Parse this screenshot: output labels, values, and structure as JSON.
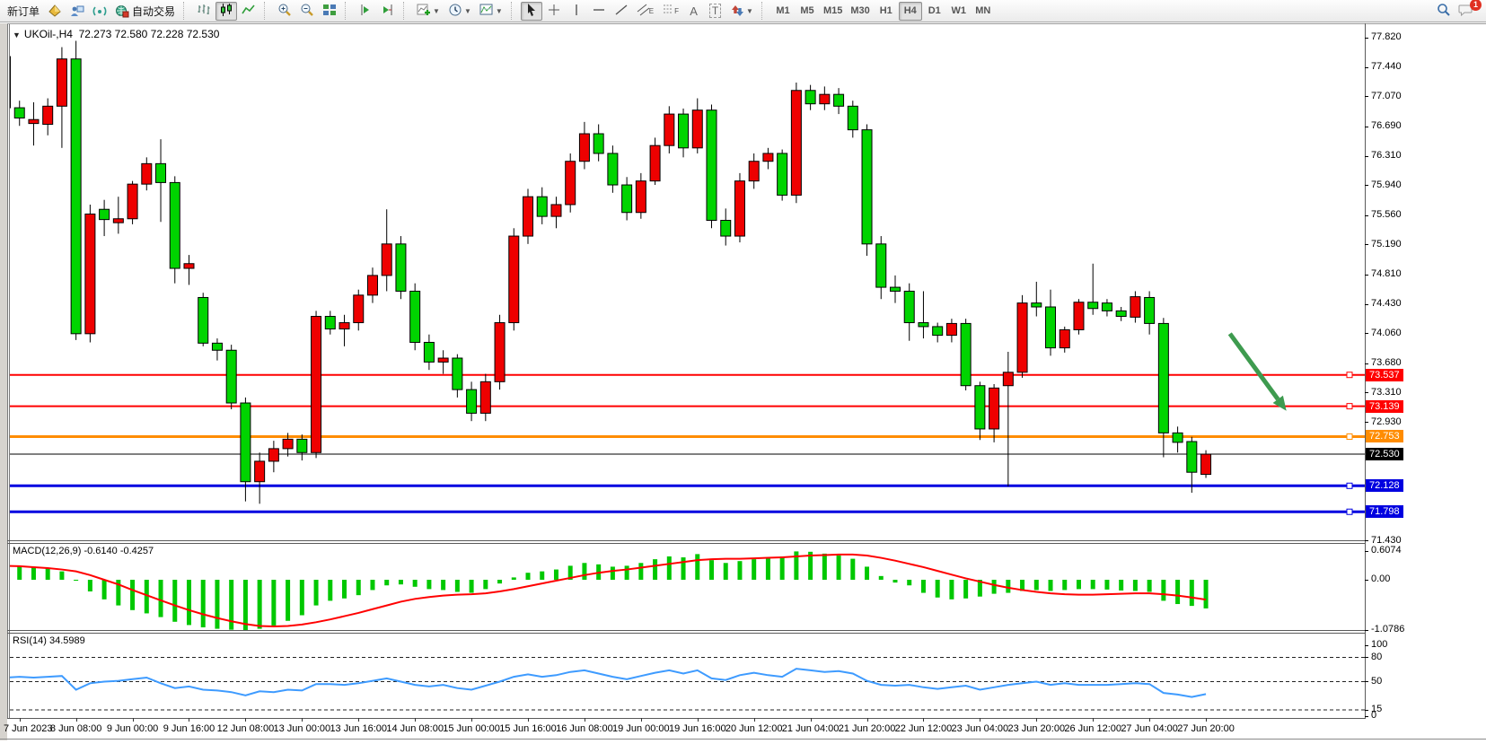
{
  "toolbar": {
    "new_order_label": "新订单",
    "auto_trade_label": "自动交易",
    "timeframes": [
      "M1",
      "M5",
      "M15",
      "M30",
      "H1",
      "H4",
      "D1",
      "W1",
      "MN"
    ],
    "active_timeframe": "H4",
    "notification_badge": "1",
    "text_tool_label": "A",
    "label_tool_label": "T",
    "channel_tool_label": "E",
    "fibo_tool_label": "F"
  },
  "chart": {
    "title_symbol_period": "UKOil-,H4",
    "title_ohlc": "72.273 72.580 72.228 72.530",
    "macd_label": "MACD(12,26,9) -0.6140 -0.4257",
    "rsi_label": "RSI(14) 34.5989"
  },
  "colors": {
    "bull_candle": "#EE0000",
    "bear_candle": "#00D400",
    "candle_outline": "#000000",
    "macd_histogram": "#00C800",
    "macd_signal": "#FF0000",
    "rsi_line": "#3E9BFF",
    "level_red": "#FF0000",
    "level_orange": "#FF8C00",
    "level_blue": "#0000E0",
    "current_price_line": "#000000",
    "arrow": "#3E9B4F"
  },
  "price_lines": [
    {
      "price": 73.537,
      "label": "73.537",
      "color": "#FF0000",
      "width": 2,
      "handle": true
    },
    {
      "price": 73.139,
      "label": "73.139",
      "color": "#FF0000",
      "width": 2,
      "handle": true
    },
    {
      "price": 72.753,
      "label": "72.753",
      "color": "#FF8C00",
      "width": 3,
      "handle": true
    },
    {
      "price": 72.53,
      "label": "72.530",
      "color": "#000000",
      "width": 1,
      "handle": false
    },
    {
      "price": 72.128,
      "label": "72.128",
      "color": "#0000E0",
      "width": 3,
      "handle": true
    },
    {
      "price": 71.798,
      "label": "71.798",
      "color": "#0000E0",
      "width": 3,
      "handle": true
    }
  ],
  "annotation_arrow": {
    "from_bar": 86.7,
    "from_price": 74.06,
    "to_bar": 90.7,
    "to_price": 73.08,
    "color": "#3E9B4F"
  },
  "axis": {
    "price_ticks": [
      "77.820",
      "77.440",
      "77.070",
      "76.690",
      "76.310",
      "75.940",
      "75.560",
      "75.190",
      "74.810",
      "74.430",
      "74.060",
      "73.680",
      "73.310",
      "72.930",
      "71.430"
    ],
    "macd_ticks": [
      {
        "label": "0.6074",
        "value": 0.6074
      },
      {
        "label": "0.00",
        "value": 0
      },
      {
        "label": "-1.0786",
        "value": -1.0786
      }
    ],
    "rsi_ticks": [
      {
        "label": "100",
        "value": 100
      },
      {
        "label": "80",
        "value": 80
      },
      {
        "label": "50",
        "value": 50
      },
      {
        "label": "15",
        "value": 15
      },
      {
        "label": "0",
        "value": 0
      }
    ]
  },
  "chart_data": [
    {
      "type": "candlestick",
      "title": "UKOil-,H4",
      "symbol": "UKOil-",
      "period": "H4",
      "ohlc_current": {
        "open": 72.273,
        "high": 72.58,
        "low": 72.228,
        "close": 72.53
      },
      "ylim": [
        71.43,
        77.82
      ],
      "grid": false,
      "up_color_convention": "red-up-green-down",
      "x_labels": [
        "7 Jun 2023",
        "8 Jun 08:00",
        "9 Jun 00:00",
        "9 Jun 16:00",
        "12 Jun 08:00",
        "13 Jun 00:00",
        "13 Jun 16:00",
        "14 Jun 08:00",
        "15 Jun 00:00",
        "15 Jun 16:00",
        "16 Jun 08:00",
        "19 Jun 00:00",
        "19 Jun 16:00",
        "20 Jun 12:00",
        "21 Jun 04:00",
        "21 Jun 20:00",
        "22 Jun 12:00",
        "23 Jun 04:00",
        "23 Jun 20:00",
        "26 Jun 12:00",
        "27 Jun 04:00",
        "27 Jun 20:00"
      ],
      "candles": [
        [
          77.58,
          77.74,
          76.88,
          76.93
        ],
        [
          76.93,
          77.02,
          76.7,
          76.8
        ],
        [
          76.73,
          77.0,
          76.45,
          76.78
        ],
        [
          76.72,
          77.05,
          76.58,
          76.95
        ],
        [
          76.95,
          77.7,
          76.42,
          77.55
        ],
        [
          77.55,
          77.78,
          73.98,
          74.06
        ],
        [
          74.06,
          75.7,
          73.95,
          75.58
        ],
        [
          75.64,
          75.76,
          75.3,
          75.51
        ],
        [
          75.47,
          75.8,
          75.33,
          75.52
        ],
        [
          75.52,
          76.0,
          75.45,
          75.96
        ],
        [
          75.96,
          76.3,
          75.88,
          76.22
        ],
        [
          76.22,
          76.53,
          75.48,
          75.98
        ],
        [
          75.98,
          76.06,
          74.7,
          74.89
        ],
        [
          74.89,
          75.06,
          74.68,
          74.95
        ],
        [
          74.52,
          74.58,
          73.9,
          73.94
        ],
        [
          73.94,
          74.0,
          73.72,
          73.85
        ],
        [
          73.85,
          73.92,
          73.1,
          73.18
        ],
        [
          73.18,
          73.25,
          71.93,
          72.18
        ],
        [
          72.18,
          72.55,
          71.9,
          72.44
        ],
        [
          72.44,
          72.7,
          72.3,
          72.6
        ],
        [
          72.6,
          72.8,
          72.5,
          72.72
        ],
        [
          72.72,
          72.78,
          72.45,
          72.55
        ],
        [
          72.55,
          74.35,
          72.48,
          74.28
        ],
        [
          74.28,
          74.35,
          74.05,
          74.12
        ],
        [
          74.12,
          74.3,
          73.9,
          74.2
        ],
        [
          74.2,
          74.62,
          74.1,
          74.55
        ],
        [
          74.55,
          74.9,
          74.45,
          74.8
        ],
        [
          74.8,
          75.64,
          74.6,
          75.2
        ],
        [
          75.2,
          75.3,
          74.5,
          74.6
        ],
        [
          74.6,
          74.7,
          73.85,
          73.95
        ],
        [
          73.95,
          74.05,
          73.6,
          73.7
        ],
        [
          73.7,
          73.85,
          73.55,
          73.75
        ],
        [
          73.75,
          73.8,
          73.25,
          73.35
        ],
        [
          73.35,
          73.45,
          72.95,
          73.05
        ],
        [
          73.05,
          73.55,
          72.95,
          73.45
        ],
        [
          73.45,
          74.3,
          73.35,
          74.2
        ],
        [
          74.2,
          75.4,
          74.1,
          75.3
        ],
        [
          75.3,
          75.9,
          75.2,
          75.8
        ],
        [
          75.8,
          75.92,
          75.45,
          75.55
        ],
        [
          75.55,
          75.8,
          75.4,
          75.7
        ],
        [
          75.7,
          76.35,
          75.6,
          76.25
        ],
        [
          76.25,
          76.75,
          76.15,
          76.6
        ],
        [
          76.6,
          76.72,
          76.25,
          76.35
        ],
        [
          76.35,
          76.45,
          75.85,
          75.95
        ],
        [
          75.95,
          76.05,
          75.5,
          75.6
        ],
        [
          75.6,
          76.1,
          75.52,
          76.0
        ],
        [
          76.0,
          76.55,
          75.95,
          76.45
        ],
        [
          76.45,
          76.95,
          76.35,
          76.85
        ],
        [
          76.85,
          76.92,
          76.3,
          76.42
        ],
        [
          76.42,
          77.05,
          76.35,
          76.9
        ],
        [
          76.9,
          76.97,
          75.4,
          75.5
        ],
        [
          75.5,
          75.65,
          75.18,
          75.3
        ],
        [
          75.3,
          76.1,
          75.22,
          76.0
        ],
        [
          76.0,
          76.35,
          75.9,
          76.25
        ],
        [
          76.25,
          76.42,
          76.15,
          76.35
        ],
        [
          76.35,
          76.4,
          75.75,
          75.82
        ],
        [
          75.82,
          77.25,
          75.72,
          77.15
        ],
        [
          77.15,
          77.22,
          76.9,
          76.98
        ],
        [
          76.98,
          77.2,
          76.9,
          77.1
        ],
        [
          77.1,
          77.18,
          76.85,
          76.95
        ],
        [
          76.95,
          77.02,
          76.55,
          76.65
        ],
        [
          76.65,
          76.72,
          75.05,
          75.2
        ],
        [
          75.2,
          75.3,
          74.5,
          74.65
        ],
        [
          74.65,
          74.8,
          74.45,
          74.6
        ],
        [
          74.6,
          74.7,
          73.97,
          74.2
        ],
        [
          74.2,
          74.6,
          74.0,
          74.15
        ],
        [
          74.15,
          74.2,
          73.95,
          74.04
        ],
        [
          74.04,
          74.25,
          73.95,
          74.19
        ],
        [
          74.19,
          74.25,
          73.34,
          73.4
        ],
        [
          73.4,
          73.45,
          72.71,
          72.85
        ],
        [
          72.85,
          73.42,
          72.68,
          73.37
        ],
        [
          73.4,
          73.83,
          72.12,
          73.57
        ],
        [
          73.57,
          74.55,
          73.5,
          74.45
        ],
        [
          74.45,
          74.72,
          74.28,
          74.4
        ],
        [
          74.4,
          74.62,
          73.78,
          73.88
        ],
        [
          73.88,
          74.15,
          73.82,
          74.11
        ],
        [
          74.11,
          74.5,
          74.05,
          74.46
        ],
        [
          74.46,
          74.95,
          74.3,
          74.38
        ],
        [
          74.45,
          74.5,
          74.28,
          74.35
        ],
        [
          74.35,
          74.4,
          74.22,
          74.28
        ],
        [
          74.27,
          74.6,
          74.2,
          74.53
        ],
        [
          74.52,
          74.6,
          74.05,
          74.19
        ],
        [
          74.19,
          74.26,
          72.49,
          72.8
        ],
        [
          72.8,
          72.88,
          72.55,
          72.68
        ],
        [
          72.69,
          72.75,
          72.04,
          72.3
        ],
        [
          72.273,
          72.58,
          72.228,
          72.53
        ]
      ]
    },
    {
      "type": "bar",
      "name": "MACD",
      "params": "12,26,9",
      "ylim": [
        -1.0786,
        0.6074
      ],
      "current_main": -0.614,
      "current_signal": -0.4257,
      "values": [
        0.32,
        0.3,
        0.28,
        0.24,
        0.18,
        -0.02,
        -0.25,
        -0.42,
        -0.55,
        -0.65,
        -0.72,
        -0.8,
        -0.9,
        -0.97,
        -1.02,
        -1.05,
        -1.07,
        -1.0786,
        -1.05,
        -0.98,
        -0.88,
        -0.76,
        -0.55,
        -0.45,
        -0.4,
        -0.33,
        -0.22,
        -0.12,
        -0.1,
        -0.15,
        -0.2,
        -0.22,
        -0.26,
        -0.28,
        -0.2,
        -0.08,
        0.05,
        0.15,
        0.18,
        0.22,
        0.3,
        0.36,
        0.33,
        0.28,
        0.3,
        0.36,
        0.44,
        0.5,
        0.48,
        0.55,
        0.42,
        0.36,
        0.4,
        0.44,
        0.48,
        0.5,
        0.6074,
        0.6,
        0.56,
        0.52,
        0.45,
        0.28,
        0.08,
        -0.06,
        -0.12,
        -0.28,
        -0.38,
        -0.42,
        -0.4,
        -0.36,
        -0.3,
        -0.28,
        -0.24,
        -0.22,
        -0.24,
        -0.22,
        -0.2,
        -0.2,
        -0.21,
        -0.23,
        -0.24,
        -0.26,
        -0.45,
        -0.52,
        -0.56,
        -0.614
      ],
      "signal": [
        0.3,
        0.29,
        0.27,
        0.25,
        0.22,
        0.18,
        0.1,
        0.0,
        -0.1,
        -0.22,
        -0.33,
        -0.44,
        -0.55,
        -0.65,
        -0.74,
        -0.82,
        -0.89,
        -0.95,
        -0.99,
        -1.0,
        -0.99,
        -0.96,
        -0.91,
        -0.85,
        -0.78,
        -0.71,
        -0.63,
        -0.55,
        -0.47,
        -0.41,
        -0.37,
        -0.34,
        -0.32,
        -0.31,
        -0.29,
        -0.25,
        -0.2,
        -0.14,
        -0.08,
        -0.02,
        0.04,
        0.1,
        0.15,
        0.19,
        0.22,
        0.26,
        0.3,
        0.34,
        0.38,
        0.42,
        0.44,
        0.45,
        0.45,
        0.46,
        0.47,
        0.48,
        0.5,
        0.52,
        0.53,
        0.54,
        0.54,
        0.52,
        0.47,
        0.41,
        0.34,
        0.27,
        0.19,
        0.11,
        0.03,
        -0.04,
        -0.11,
        -0.17,
        -0.22,
        -0.26,
        -0.29,
        -0.31,
        -0.32,
        -0.32,
        -0.31,
        -0.3,
        -0.29,
        -0.29,
        -0.31,
        -0.34,
        -0.38,
        -0.4257
      ]
    },
    {
      "type": "line",
      "name": "RSI",
      "params": "14",
      "ylim": [
        0,
        100
      ],
      "levels": [
        80,
        50,
        15
      ],
      "current": 34.5989,
      "values": [
        55,
        56,
        55,
        56,
        57,
        40,
        48,
        50,
        51,
        53,
        55,
        48,
        42,
        44,
        40,
        39,
        37,
        33,
        38,
        37,
        40,
        39,
        47,
        47,
        46,
        48,
        51,
        54,
        50,
        46,
        44,
        46,
        42,
        40,
        45,
        50,
        56,
        59,
        56,
        58,
        62,
        64,
        60,
        56,
        53,
        57,
        61,
        64,
        60,
        64,
        54,
        52,
        58,
        61,
        58,
        56,
        66,
        64,
        62,
        63,
        60,
        51,
        46,
        45,
        46,
        43,
        41,
        43,
        45,
        40,
        43,
        46,
        48,
        50,
        46,
        48,
        46,
        46,
        46,
        47,
        48,
        47,
        36,
        34,
        31,
        34.6
      ]
    }
  ]
}
